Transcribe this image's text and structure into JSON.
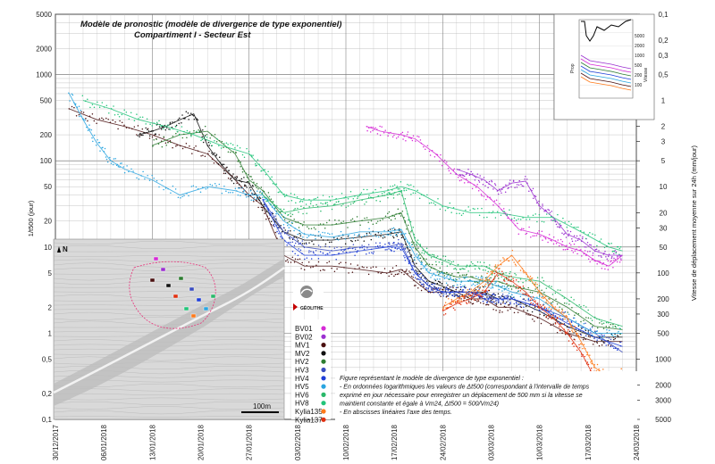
{
  "chart_data": {
    "type": "scatter",
    "title": "Modèle de pronostic (modèle de divergence de type exponentiel)",
    "subtitle": "Compartiment I - Secteur Est",
    "ylabel": "1/t500 (jour)",
    "y2label": "Vitesse de déplacement moyenne sur 24h (mm/jour)",
    "xlabel": "",
    "x_ticks": [
      "30/12/2017",
      "06/01/2018",
      "13/01/2018",
      "20/01/2018",
      "27/01/2018",
      "03/02/2018",
      "10/02/2018",
      "17/02/2018",
      "24/02/2018",
      "03/03/2018",
      "10/03/2018",
      "17/03/2018",
      "24/03/2018"
    ],
    "xlim": [
      0,
      84
    ],
    "y_scale": "log",
    "ylim": [
      0.1,
      5000
    ],
    "y_ticks": [
      "0,1",
      "0,2",
      "0,5",
      "1",
      "2",
      "5",
      "10",
      "20",
      "50",
      "100",
      "200",
      "500",
      "1000",
      "2000",
      "5000"
    ],
    "y2_ticks": [
      "0,1",
      "0,2",
      "0,3",
      "0,5",
      "1",
      "2",
      "3",
      "5",
      "10",
      "20",
      "30",
      "50",
      "100",
      "200",
      "300",
      "500",
      "1000",
      "2000",
      "3000",
      "5000"
    ],
    "series": [
      {
        "name": "BV01",
        "color": "#d62ad6",
        "x": [
          45,
          47,
          50,
          52,
          55,
          58,
          61,
          64,
          67,
          70,
          72,
          74,
          76,
          78,
          80,
          82
        ],
        "y": [
          250,
          220,
          200,
          180,
          120,
          70,
          50,
          30,
          16,
          14,
          12,
          10,
          9,
          7,
          6,
          8
        ]
      },
      {
        "name": "BV02",
        "color": "#9b30d0",
        "x": [
          58,
          60,
          62,
          64,
          66,
          68,
          70,
          72,
          74,
          76,
          78,
          80,
          82
        ],
        "y": [
          80,
          70,
          60,
          45,
          55,
          58,
          30,
          22,
          14,
          12,
          9,
          8,
          8
        ]
      },
      {
        "name": "MV1",
        "color": "#4a1010",
        "x": [
          2,
          6,
          10,
          14,
          18,
          22,
          26,
          28,
          30,
          33,
          36,
          40,
          44,
          48,
          50,
          52,
          54,
          56,
          58,
          60,
          62,
          64,
          66,
          70,
          74,
          78,
          82
        ],
        "y": [
          400,
          300,
          250,
          200,
          150,
          120,
          60,
          40,
          30,
          8,
          6,
          6,
          5.5,
          5,
          5.5,
          4,
          3,
          3,
          3,
          2.5,
          2.5,
          2,
          2,
          1.5,
          1,
          0.8,
          0.8
        ]
      },
      {
        "name": "MV2",
        "color": "#111111",
        "x": [
          12,
          14,
          16,
          18,
          20,
          22,
          24,
          26,
          28,
          30,
          33,
          36,
          40,
          44,
          48,
          50,
          52,
          54,
          56,
          58,
          60,
          62,
          64,
          66,
          70,
          74,
          78,
          82
        ],
        "y": [
          200,
          220,
          250,
          300,
          350,
          150,
          90,
          60,
          55,
          30,
          15,
          12,
          12,
          13,
          14,
          15,
          6,
          4,
          3.5,
          3,
          3,
          3,
          2.5,
          2.5,
          1.8,
          1.2,
          0.9,
          0.9
        ]
      },
      {
        "name": "HV2",
        "color": "#2e7d32",
        "x": [
          14,
          18,
          22,
          26,
          28,
          30,
          33,
          36,
          40,
          44,
          48,
          50,
          52,
          54,
          56,
          58,
          60,
          62,
          64,
          66,
          70,
          74,
          78,
          82
        ],
        "y": [
          150,
          200,
          220,
          120,
          60,
          45,
          22,
          18,
          18,
          20,
          22,
          25,
          10,
          6,
          5,
          4.5,
          4.5,
          4,
          4,
          3.5,
          3,
          2,
          1.2,
          1.1
        ]
      },
      {
        "name": "HV3",
        "color": "#3a4cc0",
        "x": [
          30,
          33,
          36,
          40,
          44,
          48,
          50,
          52,
          54,
          56,
          58,
          60,
          62,
          64,
          66,
          70,
          74,
          78,
          82
        ],
        "y": [
          35,
          15,
          10,
          9,
          10,
          10,
          11,
          5,
          3.5,
          3,
          3,
          3,
          2.8,
          2.5,
          2.5,
          2,
          1.5,
          1,
          0.6
        ]
      },
      {
        "name": "HV4",
        "color": "#1f3fd8",
        "x": [
          30,
          33,
          36,
          40,
          44,
          48,
          50,
          52,
          54,
          56,
          58,
          60,
          62,
          64,
          66,
          70,
          74,
          78,
          82
        ],
        "y": [
          35,
          12,
          8,
          8,
          9,
          10,
          10,
          5,
          3.5,
          3,
          3,
          3,
          2.5,
          2.5,
          2.5,
          2,
          1.3,
          0.9,
          0.7
        ]
      },
      {
        "name": "HV5",
        "color": "#2aa5e0",
        "x": [
          2,
          4,
          6,
          8,
          10,
          14,
          18,
          22,
          26,
          28,
          30,
          33,
          36,
          40,
          44,
          48,
          50,
          52,
          54,
          56,
          58,
          60,
          62,
          64,
          66,
          70,
          74,
          78,
          82
        ],
        "y": [
          600,
          300,
          160,
          100,
          80,
          60,
          40,
          50,
          45,
          40,
          40,
          20,
          14,
          13,
          15,
          15,
          16,
          8,
          5,
          4.5,
          4,
          4,
          4,
          3.5,
          3,
          2.5,
          1.5,
          1,
          1
        ]
      },
      {
        "name": "HV6",
        "color": "#2ab86a",
        "x": [
          30,
          33,
          36,
          40,
          44,
          48,
          50,
          52,
          54,
          56,
          58,
          60,
          62,
          64,
          66,
          70,
          74,
          78,
          82
        ],
        "y": [
          40,
          25,
          28,
          30,
          35,
          40,
          45,
          12,
          8,
          7,
          6,
          6,
          6,
          5,
          4.5,
          4,
          2.5,
          1.5,
          1.2
        ]
      },
      {
        "name": "HV8",
        "color": "#23c47a",
        "x": [
          4,
          8,
          12,
          16,
          20,
          24,
          28,
          30,
          33,
          36,
          40,
          44,
          48,
          50,
          52,
          56,
          60,
          64,
          68,
          72,
          76,
          80,
          82
        ],
        "y": [
          500,
          400,
          300,
          250,
          200,
          150,
          120,
          80,
          40,
          35,
          35,
          40,
          45,
          50,
          45,
          30,
          25,
          25,
          22,
          22,
          15,
          10,
          9
        ]
      },
      {
        "name": "Kylia135",
        "color": "#ff7a1a",
        "x": [
          56,
          58,
          60,
          62,
          64,
          66,
          68,
          70,
          72,
          74,
          76,
          78,
          80,
          82
        ],
        "y": [
          2,
          2.5,
          3,
          4,
          6,
          8,
          5,
          3,
          2,
          1.5,
          0.8,
          0.4,
          0.3,
          0.35
        ]
      },
      {
        "name": "Kylia137",
        "color": "#e03010",
        "x": [
          56,
          58,
          60,
          62,
          64,
          66,
          68,
          70,
          72,
          74,
          76,
          78,
          80,
          82
        ],
        "y": [
          1.8,
          2.2,
          2.5,
          3,
          5,
          4,
          3,
          2,
          1.5,
          1,
          0.6,
          0.3,
          0.25,
          0.3
        ]
      }
    ],
    "legend_position": "bottom-left",
    "grid": true
  },
  "map": {
    "scale_label": "100m",
    "north_label": "N",
    "logo_label": "GÉOLITHE"
  },
  "note": {
    "lines": [
      "Figure représentant le modèle de divergence de type exponentiel :",
      "- En ordonnées logarithmiques les valeurs de Δt500 (correspondant à l'intervalle de temps",
      "  exprimé en jour nécessaire pour enregistrer un déplacement de 500 mm si la vitesse se",
      "  maintient constante et égale à Vm24, Δt500 = 500/Vm24)",
      "- En abscisses linéaires l'axe des temps."
    ]
  },
  "inset": {
    "ylabel_left": "Prop",
    "ylabel_right": "Vitesse",
    "y_ticks": [
      "5000",
      "2000",
      "1000",
      "500",
      "200",
      "100"
    ]
  }
}
